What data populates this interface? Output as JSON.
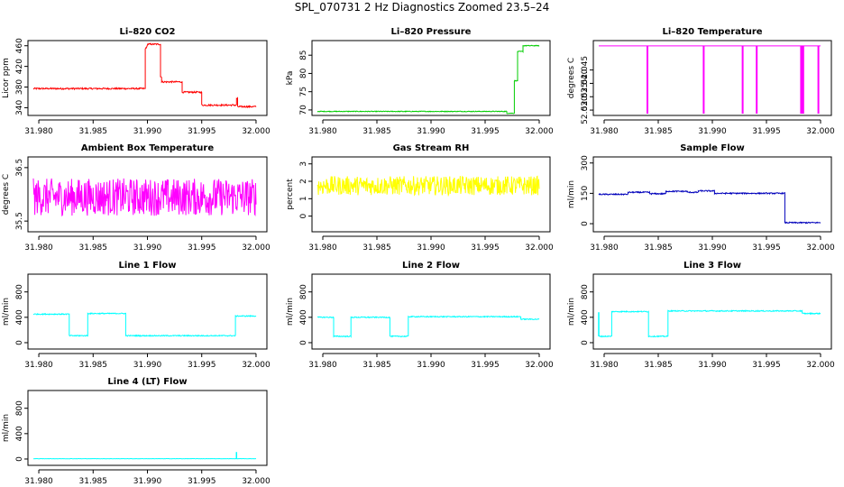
{
  "title": "SPL_070731  2 Hz Diagnostics Zoomed 23.5–24",
  "x_axis": {
    "range": [
      31.979,
      32.001
    ],
    "ticks": [
      31.98,
      31.985,
      31.99,
      31.995,
      32.0
    ],
    "tick_labels": [
      "31.980",
      "31.985",
      "31.990",
      "31.995",
      "32.000"
    ]
  },
  "chart_data": [
    {
      "type": "line",
      "title": "Li–820 CO2",
      "ylabel": "Licor ppm",
      "color": "#ff0000",
      "ylim": [
        325,
        470
      ],
      "yticks": [
        340,
        380,
        420,
        460
      ],
      "ytick_labels": [
        "340",
        "380",
        "420",
        "460"
      ],
      "noise": 1.5,
      "segments": [
        {
          "x": [
            31.9795,
            31.9898
          ],
          "y": 377
        },
        {
          "x": [
            31.9898,
            31.9899
          ],
          "y": 455
        },
        {
          "x": [
            31.99,
            31.9912
          ],
          "y": 463
        },
        {
          "x": [
            31.9912,
            31.9913
          ],
          "y": 400
        },
        {
          "x": [
            31.9913,
            31.9932
          ],
          "y": 390
        },
        {
          "x": [
            31.9932,
            31.995
          ],
          "y": 370
        },
        {
          "x": [
            31.995,
            31.9982
          ],
          "y": 345
        },
        {
          "x": [
            31.9982,
            31.9983
          ],
          "y": 358
        },
        {
          "x": [
            31.9983,
            32.0
          ],
          "y": 342
        }
      ]
    },
    {
      "type": "line",
      "title": "Li–820 Pressure",
      "ylabel": "kPa",
      "color": "#00cc00",
      "ylim": [
        68.5,
        89
      ],
      "yticks": [
        70,
        75,
        80,
        85
      ],
      "ytick_labels": [
        "70",
        "75",
        "80",
        "85"
      ],
      "noise": 0.1,
      "segments": [
        {
          "x": [
            31.9795,
            31.997
          ],
          "y": 69.6
        },
        {
          "x": [
            31.997,
            31.9977
          ],
          "y": 69.1
        },
        {
          "x": [
            31.9977,
            31.998
          ],
          "y": 78
        },
        {
          "x": [
            31.998,
            31.9985
          ],
          "y": 86
        },
        {
          "x": [
            31.9985,
            32.0
          ],
          "y": 87.6
        }
      ]
    },
    {
      "type": "line",
      "title": "Li–820 Temperature",
      "ylabel": "degrees C",
      "color": "#ff00ff",
      "ylim": [
        52.028,
        52.056
      ],
      "yticks": [
        52.03,
        52.035,
        52.04,
        52.045
      ],
      "ytick_labels": [
        "52.030",
        "52.035",
        "52.040",
        "52.045"
      ],
      "noise": 0,
      "segments": [
        {
          "x": [
            31.9795,
            32.0
          ],
          "y": 52.054
        }
      ],
      "spikes": [
        31.984,
        31.9892,
        31.9928,
        31.9941,
        31.9982,
        31.9983,
        31.9984,
        31.9998
      ]
    },
    {
      "type": "line",
      "title": "Ambient Box Temperature",
      "ylabel": "degrees C",
      "color": "#ff00ff",
      "ylim": [
        35.3,
        36.7
      ],
      "yticks": [
        35.5,
        36.5
      ],
      "ytick_labels": [
        "35.5",
        "36.5"
      ],
      "noise": 0.35,
      "segments": [
        {
          "x": [
            31.9795,
            32.0
          ],
          "y": 35.95
        }
      ]
    },
    {
      "type": "line",
      "title": "Gas Stream RH",
      "ylabel": "percent",
      "color": "#ffff00",
      "ylim": [
        -0.9,
        3.4
      ],
      "yticks": [
        0,
        1,
        2,
        3
      ],
      "ytick_labels": [
        "0",
        "1",
        "2",
        "3"
      ],
      "noise": 0.55,
      "segments": [
        {
          "x": [
            31.9795,
            32.0
          ],
          "y": 1.75
        }
      ]
    },
    {
      "type": "line",
      "title": "Sample Flow",
      "ylabel": "ml/min",
      "color": "#0000bb",
      "ylim": [
        -40,
        330
      ],
      "yticks": [
        0,
        150,
        300
      ],
      "ytick_labels": [
        "0",
        "150",
        "300"
      ],
      "noise": 3,
      "segments": [
        {
          "x": [
            31.9795,
            31.9822
          ],
          "y": 145
        },
        {
          "x": [
            31.9822,
            31.9842
          ],
          "y": 155
        },
        {
          "x": [
            31.9842,
            31.9857
          ],
          "y": 148
        },
        {
          "x": [
            31.9857,
            31.9877
          ],
          "y": 160
        },
        {
          "x": [
            31.9877,
            31.9887
          ],
          "y": 155
        },
        {
          "x": [
            31.9887,
            31.9902
          ],
          "y": 162
        },
        {
          "x": [
            31.9902,
            31.9967
          ],
          "y": 150
        },
        {
          "x": [
            31.9967,
            32.0
          ],
          "y": 5
        }
      ]
    },
    {
      "type": "line",
      "title": "Line 1 Flow",
      "ylabel": "ml/min",
      "color": "#00ffff",
      "ylim": [
        -100,
        1080
      ],
      "yticks": [
        0,
        400,
        800
      ],
      "ytick_labels": [
        "0",
        "400",
        "800"
      ],
      "noise": 8,
      "segments": [
        {
          "x": [
            31.9795,
            31.9828
          ],
          "y": 450
        },
        {
          "x": [
            31.9828,
            31.9845
          ],
          "y": 110
        },
        {
          "x": [
            31.9845,
            31.988
          ],
          "y": 460
        },
        {
          "x": [
            31.988,
            31.9981
          ],
          "y": 110
        },
        {
          "x": [
            31.9981,
            32.0
          ],
          "y": 420
        }
      ]
    },
    {
      "type": "line",
      "title": "Line 2 Flow",
      "ylabel": "ml/min",
      "color": "#00ffff",
      "ylim": [
        -100,
        1080
      ],
      "yticks": [
        0,
        400,
        800
      ],
      "ytick_labels": [
        "0",
        "400",
        "800"
      ],
      "noise": 8,
      "segments": [
        {
          "x": [
            31.9795,
            31.981
          ],
          "y": 400
        },
        {
          "x": [
            31.981,
            31.9826
          ],
          "y": 100
        },
        {
          "x": [
            31.9826,
            31.9862
          ],
          "y": 400
        },
        {
          "x": [
            31.9862,
            31.9879
          ],
          "y": 100
        },
        {
          "x": [
            31.9879,
            31.9983
          ],
          "y": 410
        },
        {
          "x": [
            31.9983,
            32.0
          ],
          "y": 370
        }
      ]
    },
    {
      "type": "line",
      "title": "Line 3 Flow",
      "ylabel": "ml/min",
      "color": "#00ffff",
      "ylim": [
        -100,
        1080
      ],
      "yticks": [
        0,
        400,
        800
      ],
      "ytick_labels": [
        "0",
        "400",
        "800"
      ],
      "noise": 8,
      "segments": [
        {
          "x": [
            31.9795,
            31.9807
          ],
          "y": 100
        },
        {
          "x": [
            31.9807,
            31.9841
          ],
          "y": 490
        },
        {
          "x": [
            31.9841,
            31.9859
          ],
          "y": 100
        },
        {
          "x": [
            31.9859,
            31.9983
          ],
          "y": 500
        },
        {
          "x": [
            31.9983,
            32.0
          ],
          "y": 460
        }
      ],
      "spikes_up": [
        {
          "x": 31.9795,
          "y": 480
        }
      ]
    },
    {
      "type": "line",
      "title": "Line 4 (LT) Flow",
      "ylabel": "ml/min",
      "color": "#00ffff",
      "ylim": [
        -100,
        1080
      ],
      "yticks": [
        0,
        400,
        800
      ],
      "ytick_labels": [
        "0",
        "400",
        "800"
      ],
      "noise": 2,
      "segments": [
        {
          "x": [
            31.9795,
            32.0
          ],
          "y": 5
        }
      ],
      "spikes_up": [
        {
          "x": 31.9982,
          "y": 110
        }
      ]
    }
  ]
}
